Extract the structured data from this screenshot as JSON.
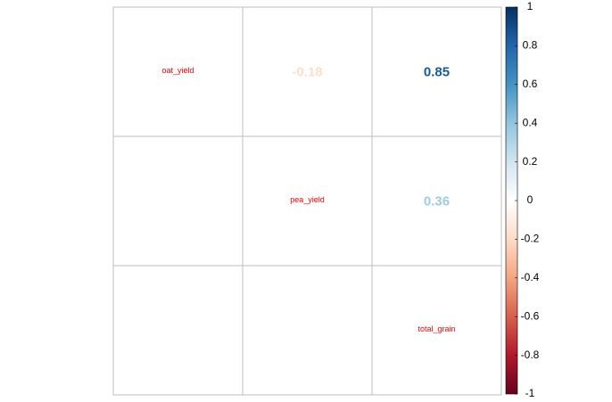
{
  "chart_data": {
    "type": "heatmap",
    "variables": [
      "oat_yield",
      "pea_yield",
      "total_grain"
    ],
    "matrix": [
      [
        1,
        -0.18,
        0.85
      ],
      [
        -0.18,
        1,
        0.36
      ],
      [
        0.85,
        0.36,
        1
      ]
    ],
    "upper_labels": [
      {
        "row": 0,
        "col": 1,
        "value": -0.18,
        "text": "-0.18"
      },
      {
        "row": 0,
        "col": 2,
        "value": 0.85,
        "text": "0.85"
      },
      {
        "row": 1,
        "col": 2,
        "value": 0.36,
        "text": "0.36"
      }
    ],
    "colorbar": {
      "range": [
        -1,
        1
      ],
      "ticks": [
        1,
        0.8,
        0.6,
        0.4,
        0.2,
        0,
        -0.2,
        -0.4,
        -0.6,
        -0.8,
        -1
      ],
      "tick_labels": [
        "1",
        "0.8",
        "0.6",
        "0.4",
        "0.2",
        "0",
        "-0.2",
        "-0.4",
        "-0.6",
        "-0.8",
        "-1"
      ],
      "palette": [
        "#67001F",
        "#B2182B",
        "#D6604D",
        "#F4A582",
        "#FDDBC7",
        "#FFFFFF",
        "#D1E5F0",
        "#92C5DE",
        "#4393C3",
        "#2166AC",
        "#053061"
      ]
    },
    "diagonal_label_color": "#FF0000",
    "grid_color": "#BEBEBE",
    "grid": true,
    "legend_placement": "right"
  }
}
